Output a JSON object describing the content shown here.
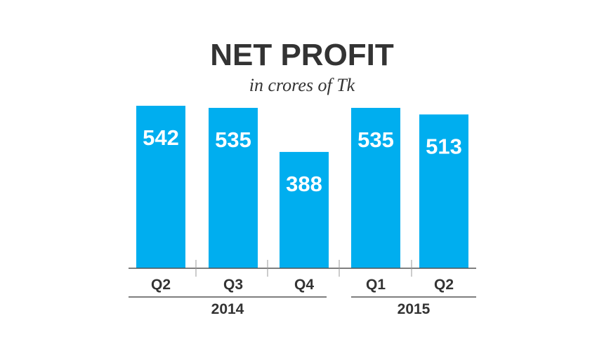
{
  "chart_data": {
    "type": "bar",
    "title": "NET PROFIT",
    "subtitle": "in crores of Tk",
    "categories": [
      "Q2",
      "Q3",
      "Q4",
      "Q1",
      "Q2"
    ],
    "values": [
      542,
      535,
      388,
      535,
      513
    ],
    "data_labels": [
      "542",
      "535",
      "388",
      "535",
      "513"
    ],
    "groups": [
      {
        "label": "2014",
        "categories": [
          "Q2",
          "Q3",
          "Q4"
        ]
      },
      {
        "label": "2015",
        "categories": [
          "Q1",
          "Q2"
        ]
      }
    ],
    "ylim": [
      0,
      560
    ],
    "grid": false,
    "legend": "none",
    "colors": {
      "bar": "#00aeef",
      "label": "#ffffff",
      "text": "#333333",
      "axis": "#555555"
    }
  }
}
